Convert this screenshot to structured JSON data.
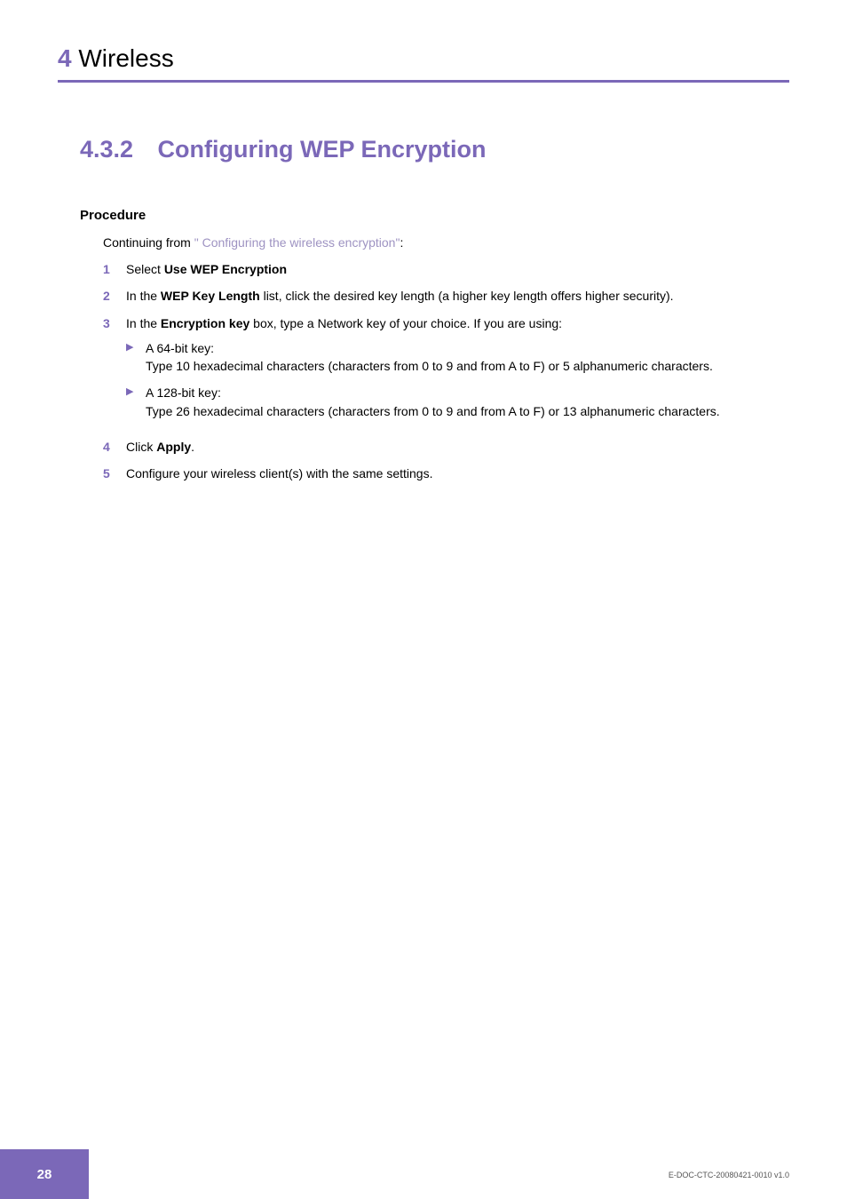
{
  "header": {
    "chapter_number": "4",
    "chapter_title": "Wireless"
  },
  "section": {
    "number": "4.3.2",
    "title": "Configuring WEP Encryption"
  },
  "procedure": {
    "label": "Procedure",
    "intro_prefix": "Continuing from ",
    "intro_link": "\" Configuring the wireless encryption\"",
    "intro_suffix": ":",
    "steps": [
      {
        "num": "1",
        "parts": [
          {
            "t": "Select ",
            "b": false
          },
          {
            "t": "Use WEP Encryption",
            "b": true
          }
        ]
      },
      {
        "num": "2",
        "parts": [
          {
            "t": "In the ",
            "b": false
          },
          {
            "t": "WEP Key Length",
            "b": true
          },
          {
            "t": " list, click the desired key length (a higher key length offers higher security).",
            "b": false
          }
        ]
      },
      {
        "num": "3",
        "parts": [
          {
            "t": "In the ",
            "b": false
          },
          {
            "t": "Encryption key",
            "b": true
          },
          {
            "t": " box, type a Network key of your choice. If you are using:",
            "b": false
          }
        ],
        "subs": [
          {
            "title": "A 64-bit key:",
            "desc": "Type 10 hexadecimal characters (characters from 0 to 9 and from A to F) or 5 alphanumeric characters."
          },
          {
            "title": "A 128-bit key:",
            "desc": "Type 26 hexadecimal characters (characters from 0 to 9 and from A to F) or 13 alphanumeric characters."
          }
        ]
      },
      {
        "num": "4",
        "parts": [
          {
            "t": "Click ",
            "b": false
          },
          {
            "t": "Apply",
            "b": true
          },
          {
            "t": ".",
            "b": false
          }
        ]
      },
      {
        "num": "5",
        "parts": [
          {
            "t": "Configure your wireless client(s) with the same settings.",
            "b": false
          }
        ]
      }
    ]
  },
  "footer": {
    "page_number": "28",
    "doc_id": "E-DOC-CTC-20080421-0010 v1.0"
  },
  "colors": {
    "accent": "#7b68b8",
    "link": "#9e93c2",
    "text": "#000000",
    "footer_text": "#555555",
    "background": "#ffffff"
  },
  "typography": {
    "body_fontsize": 14,
    "chapter_fontsize": 28,
    "section_fontsize": 27,
    "procedure_label_fontsize": 15,
    "footer_fontsize": 9
  }
}
